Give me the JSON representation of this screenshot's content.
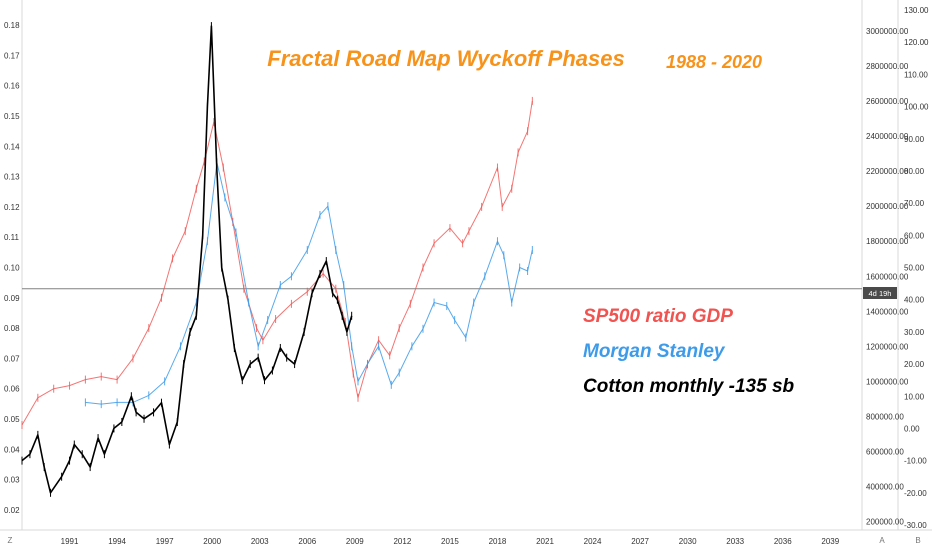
{
  "title": "Fractal Road Map Wyckoff Phases",
  "subtitle": "1988 - 2020",
  "legend": [
    {
      "label": "SP500 ratio GDP",
      "color": "#f05350"
    },
    {
      "label": "Morgan Stanley",
      "color": "#3d9be9"
    },
    {
      "label": "Cotton monthly  -135 sb",
      "color": "#000000"
    }
  ],
  "price_tag": "4d 19h",
  "corner_labels": {
    "left": "Z",
    "mid": "A",
    "right": "B"
  },
  "colors": {
    "title": "#f7931a",
    "sp500": "#f05350",
    "ms": "#3d9be9",
    "cotton": "#000000",
    "hline": "#808080"
  },
  "chart_data": {
    "type": "line",
    "x_axis": {
      "ticks": [
        "1991",
        "1994",
        "1997",
        "2000",
        "2003",
        "2006",
        "2009",
        "2012",
        "2015",
        "2018",
        "2021",
        "2024",
        "2027",
        "2030",
        "2033",
        "2036",
        "2039"
      ],
      "range": [
        1988.0,
        2041.0
      ]
    },
    "axis_left": {
      "ticks": [
        "0.18",
        "0.17",
        "0.16",
        "0.15",
        "0.14",
        "0.13",
        "0.12",
        "0.11",
        "0.10",
        "0.09",
        "0.08",
        "0.07",
        "0.06",
        "0.05",
        "0.04",
        "0.03",
        "0.02"
      ],
      "range": [
        0.015,
        0.185
      ]
    },
    "axis_mid": {
      "ticks": [
        "3000000.00",
        "2800000.00",
        "2600000.00",
        "2400000.00",
        "2200000.00",
        "2000000.00",
        "1800000.00",
        "1600000.00",
        "1400000.00",
        "1200000.00",
        "1000000.00",
        "800000.00",
        "600000.00",
        "400000.00",
        "200000.00"
      ],
      "range": [
        180000,
        3120000
      ]
    },
    "axis_right": {
      "ticks": [
        "130.00",
        "120.00",
        "110.00",
        "100.00",
        "90.00",
        "80.00",
        "70.00",
        "60.00",
        "50.00",
        "40.00",
        "30.00",
        "20.00",
        "10.00",
        "0.00",
        "-10.00",
        "-20.00",
        "-30.00"
      ],
      "range": [
        -30,
        130
      ]
    },
    "horizontal_line": 0.093,
    "series": [
      {
        "name": "SP500 ratio GDP",
        "axis": "left",
        "x": [
          1988.0,
          1989.0,
          1990.0,
          1991.0,
          1992.0,
          1993.0,
          1994.0,
          1995.0,
          1996.0,
          1996.8,
          1997.5,
          1998.3,
          1999.0,
          1999.5,
          2000.1,
          2000.7,
          2001.3,
          2002.0,
          2002.8,
          2003.2,
          2004.0,
          2005.0,
          2006.0,
          2007.0,
          2007.8,
          2008.4,
          2008.9,
          2009.2,
          2009.8,
          2010.5,
          2011.2,
          2011.8,
          2012.5,
          2013.3,
          2014.0,
          2015.0,
          2015.8,
          2016.2,
          2017.0,
          2018.0,
          2018.3,
          2018.9,
          2019.3,
          2019.9,
          2020.2
        ],
        "y": [
          0.048,
          0.057,
          0.06,
          0.061,
          0.063,
          0.064,
          0.063,
          0.07,
          0.08,
          0.09,
          0.103,
          0.112,
          0.126,
          0.135,
          0.148,
          0.133,
          0.115,
          0.093,
          0.08,
          0.076,
          0.083,
          0.088,
          0.092,
          0.098,
          0.093,
          0.082,
          0.065,
          0.057,
          0.068,
          0.076,
          0.071,
          0.08,
          0.088,
          0.1,
          0.108,
          0.113,
          0.108,
          0.112,
          0.12,
          0.133,
          0.12,
          0.126,
          0.138,
          0.145,
          0.155
        ]
      },
      {
        "name": "Morgan Stanley",
        "axis": "mid",
        "x": [
          1992.0,
          1993.0,
          1994.0,
          1995.0,
          1996.0,
          1997.0,
          1998.0,
          1999.0,
          1999.7,
          2000.3,
          2000.8,
          2001.5,
          2002.3,
          2002.9,
          2003.5,
          2004.3,
          2005.0,
          2006.0,
          2006.8,
          2007.3,
          2007.8,
          2008.3,
          2008.8,
          2009.2,
          2009.8,
          2010.5,
          2011.3,
          2011.8,
          2012.6,
          2013.3,
          2014.0,
          2014.8,
          2015.3,
          2016.0,
          2016.5,
          2017.2,
          2018.0,
          2018.4,
          2018.9,
          2019.4,
          2019.9,
          2020.2
        ],
        "y": [
          880000,
          870000,
          880000,
          880000,
          920000,
          1000000,
          1200000,
          1450000,
          1800000,
          2250000,
          2050000,
          1850000,
          1450000,
          1200000,
          1350000,
          1550000,
          1600000,
          1750000,
          1950000,
          2000000,
          1750000,
          1550000,
          1200000,
          1000000,
          1100000,
          1200000,
          980000,
          1050000,
          1200000,
          1300000,
          1450000,
          1430000,
          1350000,
          1250000,
          1450000,
          1600000,
          1800000,
          1720000,
          1450000,
          1650000,
          1630000,
          1750000
        ]
      },
      {
        "name": "Cotton monthly  -135 sb",
        "axis": "right",
        "x": [
          1988.0,
          1988.5,
          1989.0,
          1989.4,
          1989.8,
          1990.5,
          1991.0,
          1991.3,
          1991.8,
          1992.3,
          1992.8,
          1993.2,
          1993.8,
          1994.3,
          1994.9,
          1995.2,
          1995.7,
          1996.3,
          1996.8,
          1997.3,
          1997.8,
          1998.2,
          1998.6,
          1999.0,
          1999.4,
          1999.7,
          1999.95,
          2000.3,
          2000.6,
          2001.0,
          2001.4,
          2001.9,
          2002.4,
          2002.9,
          2003.3,
          2003.8,
          2004.3,
          2004.7,
          2005.2,
          2005.8,
          2006.3,
          2006.8,
          2007.2,
          2007.6,
          2007.9,
          2008.2,
          2008.5,
          2008.8
        ],
        "y": [
          -10,
          -8,
          -2,
          -12,
          -20,
          -15,
          -10,
          -5,
          -8,
          -12,
          -3,
          -8,
          0,
          2,
          10,
          5,
          3,
          5,
          8,
          -5,
          2,
          20,
          30,
          35,
          60,
          100,
          125,
          80,
          50,
          40,
          25,
          15,
          20,
          22,
          15,
          18,
          25,
          22,
          20,
          30,
          42,
          48,
          52,
          42,
          40,
          35,
          30,
          35
        ]
      }
    ]
  }
}
